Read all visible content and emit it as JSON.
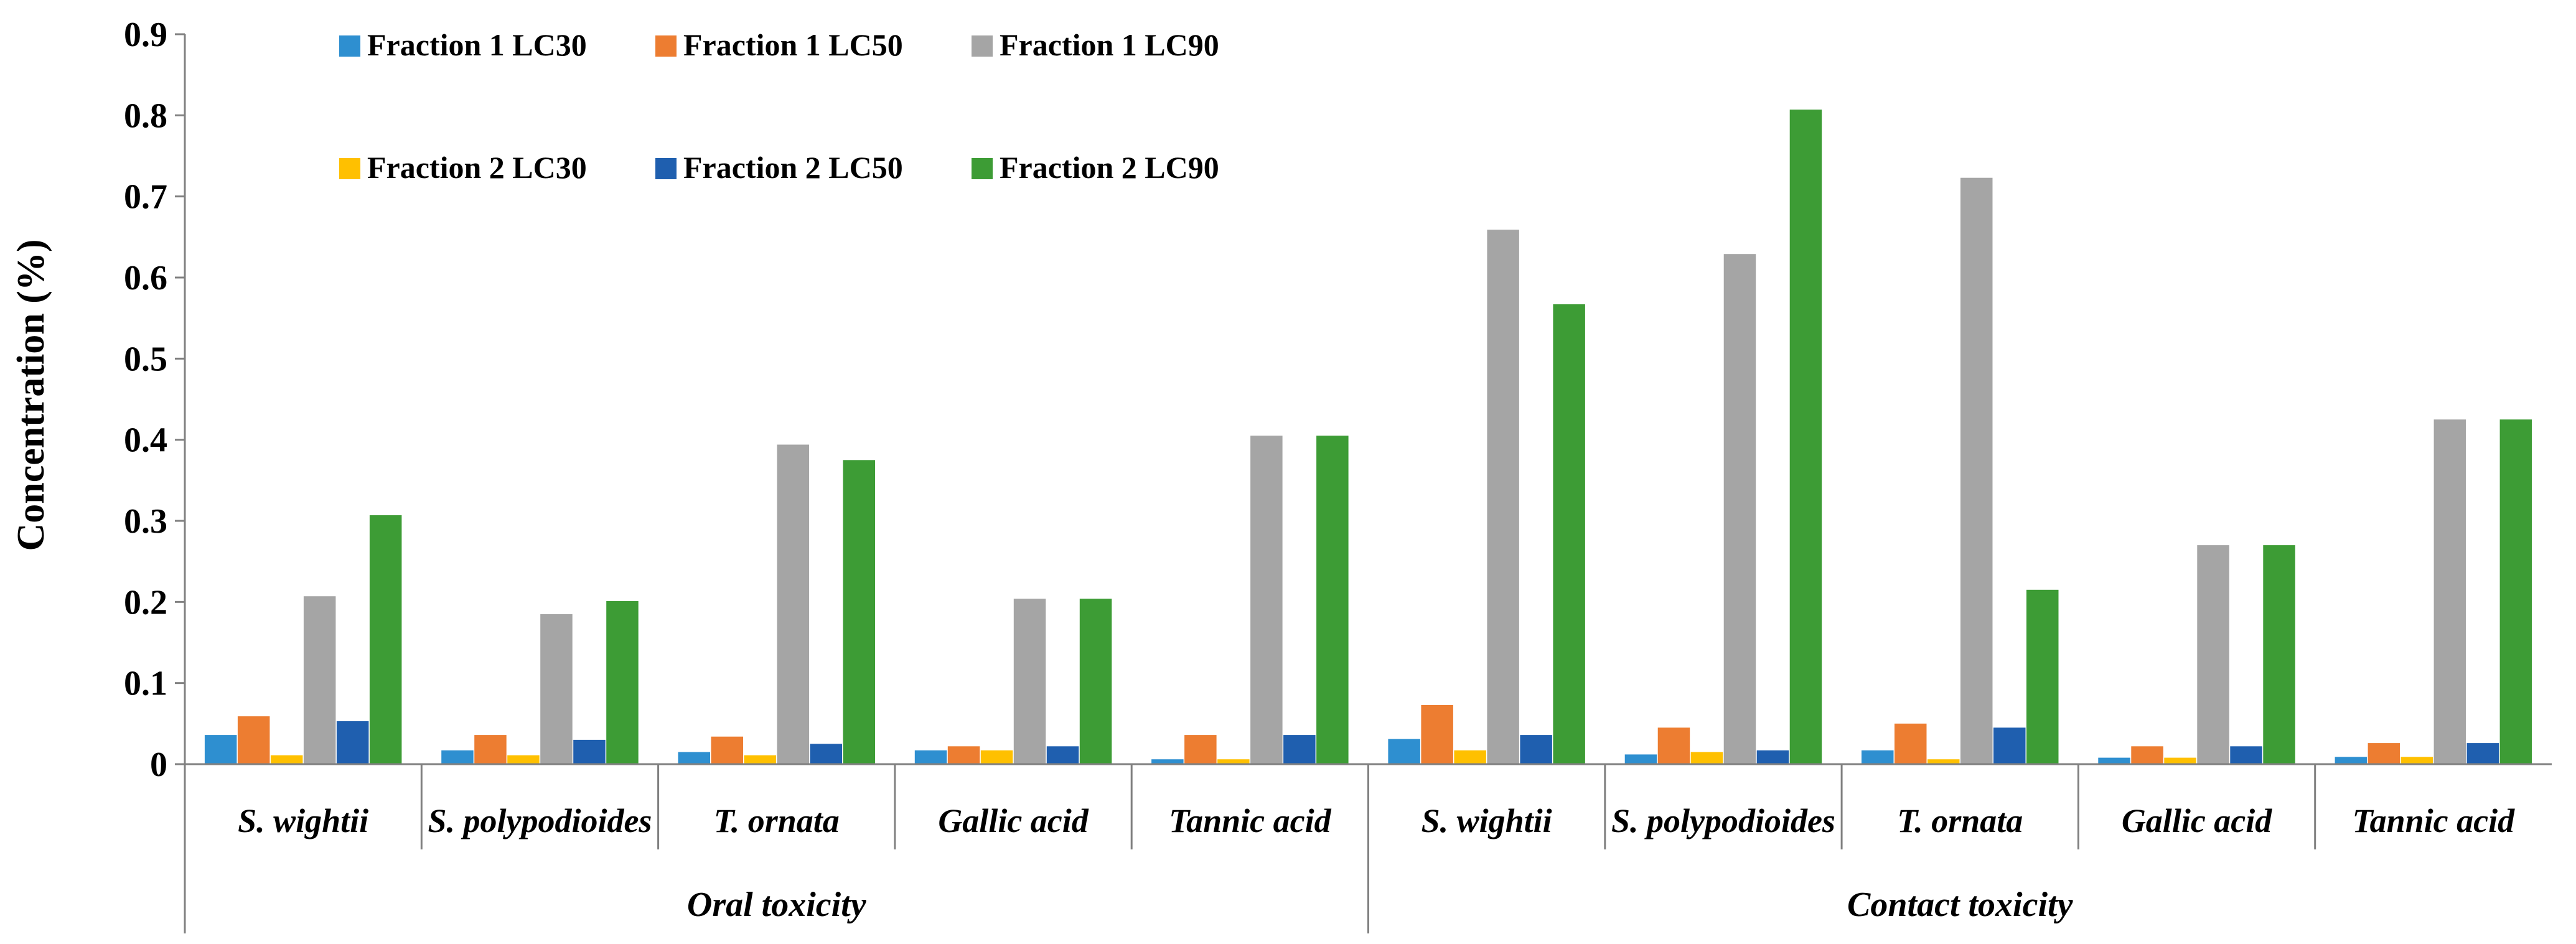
{
  "chart_data": {
    "type": "bar",
    "ylabel": "Concentration (%)",
    "ylim": [
      0,
      0.9
    ],
    "yticks": [
      "0",
      "0.1",
      "0.2",
      "0.3",
      "0.4",
      "0.5",
      "0.6",
      "0.7",
      "0.8",
      "0.9"
    ],
    "grid": false,
    "legend_position": "top-left",
    "groups": [
      "Oral toxicity",
      "Contact toxicity"
    ],
    "categories": [
      "S. wightii",
      "S. polypodioides",
      "T. ornata",
      "Gallic acid",
      "Tannic acid",
      "S. wightii",
      "S. polypodioides",
      "T. ornata",
      "Gallic acid",
      "Tannic acid"
    ],
    "series": [
      {
        "name": "Fraction 1 LC30",
        "color": "#2E8FD0",
        "values": [
          0.036,
          0.017,
          0.015,
          0.017,
          0.006,
          0.031,
          0.012,
          0.017,
          0.008,
          0.009
        ]
      },
      {
        "name": "Fraction 1 LC50",
        "color": "#ED7D31",
        "values": [
          0.059,
          0.036,
          0.034,
          0.022,
          0.036,
          0.073,
          0.045,
          0.05,
          0.022,
          0.026
        ]
      },
      {
        "name": "Fraction 2 LC30",
        "color": "#FFC000",
        "values": [
          0.011,
          0.011,
          0.011,
          0.017,
          0.006,
          0.017,
          0.015,
          0.006,
          0.008,
          0.009
        ]
      },
      {
        "name": "Fraction 1 LC90",
        "color": "#A5A5A5",
        "values": [
          0.207,
          0.185,
          0.394,
          0.204,
          0.405,
          0.659,
          0.629,
          0.723,
          0.27,
          0.425
        ]
      },
      {
        "name": "Fraction 2 LC50",
        "color": "#1F5FAF",
        "values": [
          0.053,
          0.03,
          0.025,
          0.022,
          0.036,
          0.036,
          0.017,
          0.045,
          0.022,
          0.026
        ]
      },
      {
        "name": "Fraction 2 LC90",
        "color": "#3D9C35",
        "values": [
          0.307,
          0.201,
          0.375,
          0.204,
          0.405,
          0.567,
          0.807,
          0.215,
          0.27,
          0.425
        ]
      }
    ],
    "legend": [
      [
        "Fraction 1 LC30",
        "Fraction 1 LC50",
        "Fraction 1 LC90"
      ],
      [
        "Fraction 2 LC30",
        "Fraction 2 LC50",
        "Fraction 2 LC90"
      ]
    ]
  }
}
